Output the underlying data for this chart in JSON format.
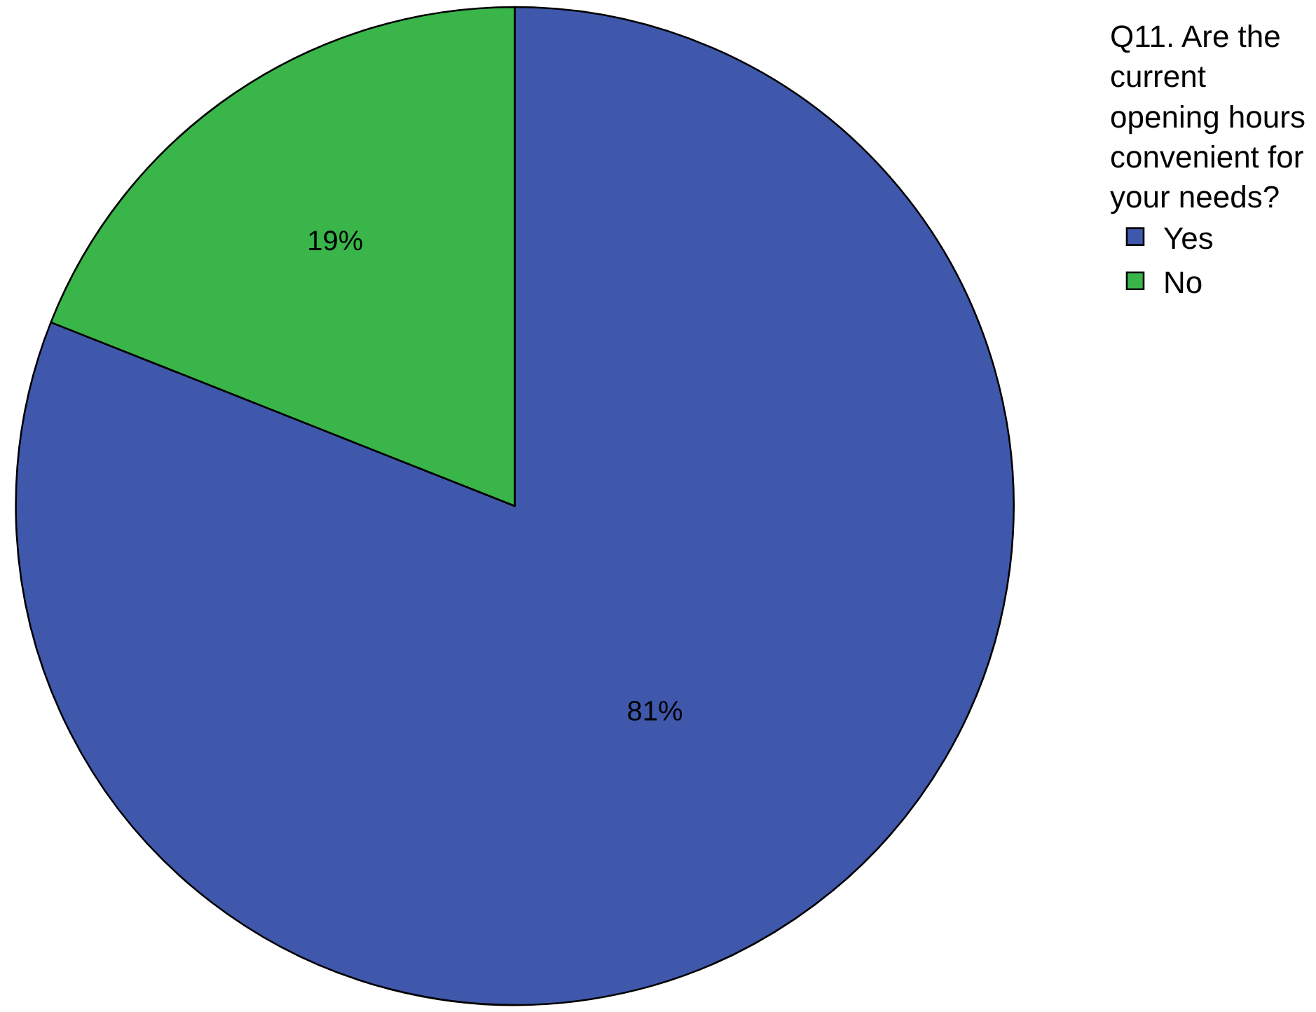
{
  "chart_data": {
    "type": "pie",
    "legend_title": "Q11. Are the current opening hours convenient for your needs?",
    "categories": [
      "Yes",
      "No"
    ],
    "values": [
      81,
      19
    ],
    "value_labels": [
      "81%",
      "19%"
    ],
    "colors": [
      "#3f58ab",
      "#3ab54a"
    ],
    "legend": "top right"
  }
}
